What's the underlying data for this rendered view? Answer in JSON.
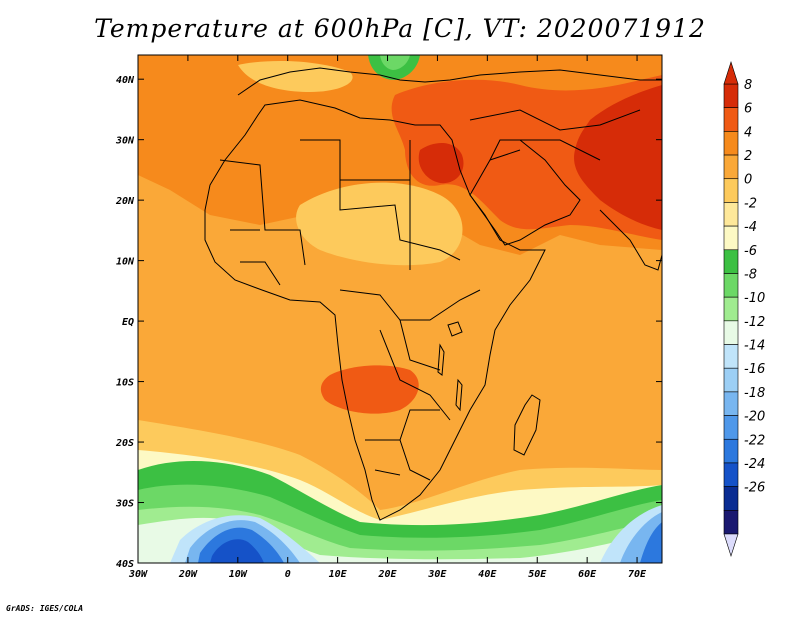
{
  "title": "Temperature at 600hPa [C], VT: 2020071912",
  "credit": "GrADS: IGES/COLA",
  "x_axis": {
    "ticks": [
      "30W",
      "20W",
      "10W",
      "0",
      "10E",
      "20E",
      "30E",
      "40E",
      "50E",
      "60E",
      "70E"
    ],
    "range": [
      -30,
      75
    ]
  },
  "y_axis": {
    "ticks": [
      "40N",
      "30N",
      "20N",
      "10N",
      "EQ",
      "10S",
      "20S",
      "30S",
      "40S"
    ],
    "range": [
      -40,
      44
    ]
  },
  "colorbar": {
    "labels": [
      "8",
      "6",
      "4",
      "2",
      "0",
      "-2",
      "-4",
      "-6",
      "-8",
      "-10",
      "-12",
      "-14",
      "-16",
      "-18",
      "-20",
      "-22",
      "-24",
      "-26"
    ],
    "colors": [
      "#d62c08",
      "#f05a14",
      "#f68a1c",
      "#faa838",
      "#fdca5c",
      "#fee89a",
      "#fdf9c4",
      "#3cc043",
      "#6cd866",
      "#a0ec90",
      "#e8fae6",
      "#c0e4fa",
      "#9ccff5",
      "#78b6f0",
      "#4f98ea",
      "#2c78de",
      "#1552c8",
      "#0a2c92",
      "#1a1970"
    ],
    "over_color": "#d62c08",
    "under_color": "#dcdcfc"
  },
  "field_colors": {
    "ocean": "#faa838",
    "warm": "#f68a1c",
    "hot": "#f05a14",
    "hottest": "#d62c08",
    "mild": "#fdca5c",
    "cool": "#fee89a",
    "pale": "#fdf9c4",
    "green": "#3cc043",
    "lightgreen": "#6cd866",
    "paler_green": "#a0ec90",
    "cyanish": "#e8fae6",
    "lightblue": "#c0e4fa",
    "blue": "#78b6f0",
    "deepblue": "#2c78de",
    "navy": "#1552c8"
  }
}
